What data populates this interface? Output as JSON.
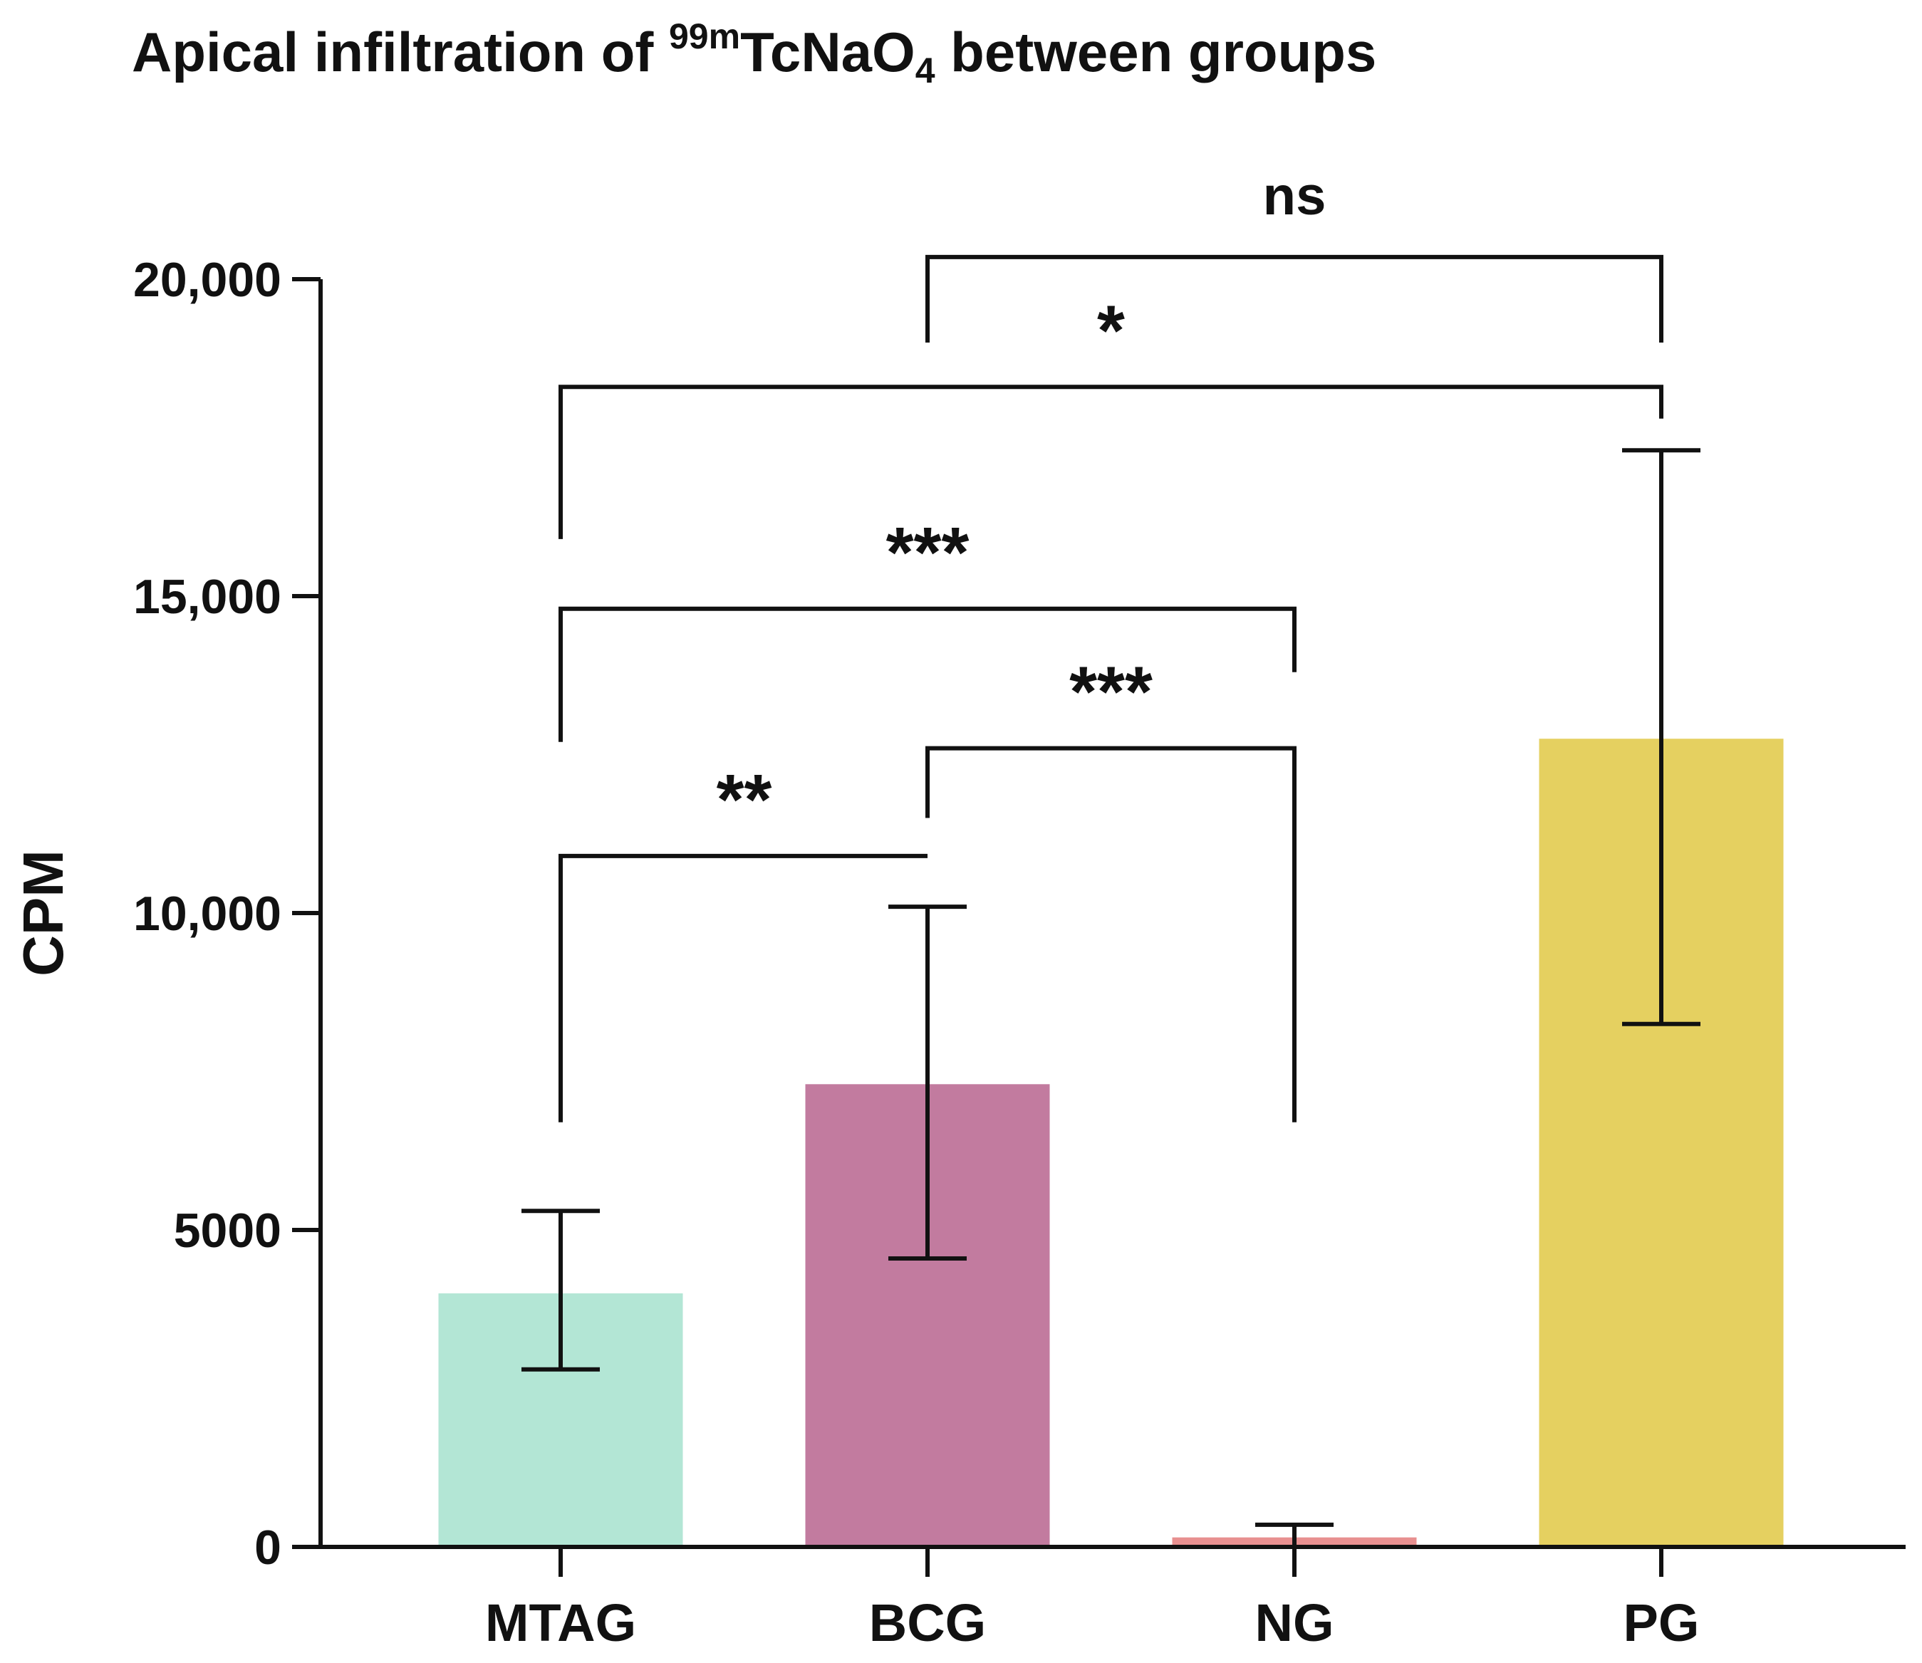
{
  "chart_data": {
    "type": "bar",
    "title": {
      "prefix": "Apical infiltration of ",
      "isotope_superscript": "99m",
      "compound_main": "TcNaO",
      "compound_subscript": "4",
      "suffix": " between groups"
    },
    "xlabel": "",
    "ylabel": "CPM",
    "ylim": [
      0,
      20000
    ],
    "yticks": [
      {
        "value": 0,
        "label": "0"
      },
      {
        "value": 5000,
        "label": "5000"
      },
      {
        "value": 10000,
        "label": "10,000"
      },
      {
        "value": 15000,
        "label": "15,000"
      },
      {
        "value": 20000,
        "label": "20,000"
      }
    ],
    "categories": [
      "MTAG",
      "BCG",
      "NG",
      "PG"
    ],
    "values": [
      4000,
      7300,
      150,
      12750
    ],
    "error_low": [
      2800,
      4550,
      0,
      8250
    ],
    "error_high": [
      5300,
      10100,
      350,
      17300
    ],
    "colors": [
      "#b3e6d5",
      "#c27b9f",
      "#e89090",
      "#e5d060"
    ],
    "significance": [
      {
        "from": "MTAG",
        "to": "BCG",
        "label": "**",
        "level": 10900,
        "left_bottom": 6700,
        "right_bottom": 10900
      },
      {
        "from": "BCG",
        "to": "NG",
        "label": "***",
        "level": 12600,
        "left_bottom": 11500,
        "right_bottom": 6700
      },
      {
        "from": "MTAG",
        "to": "NG",
        "label": "***",
        "level": 14800,
        "left_bottom": 12700,
        "right_bottom": 13800
      },
      {
        "from": "MTAG",
        "to": "PG",
        "label": "*",
        "level": 18300,
        "left_bottom": 15900,
        "right_bottom": 17800
      },
      {
        "from": "BCG",
        "to": "PG",
        "label": "ns",
        "level": 20350,
        "left_bottom": 19000,
        "right_bottom": 19000
      }
    ]
  }
}
